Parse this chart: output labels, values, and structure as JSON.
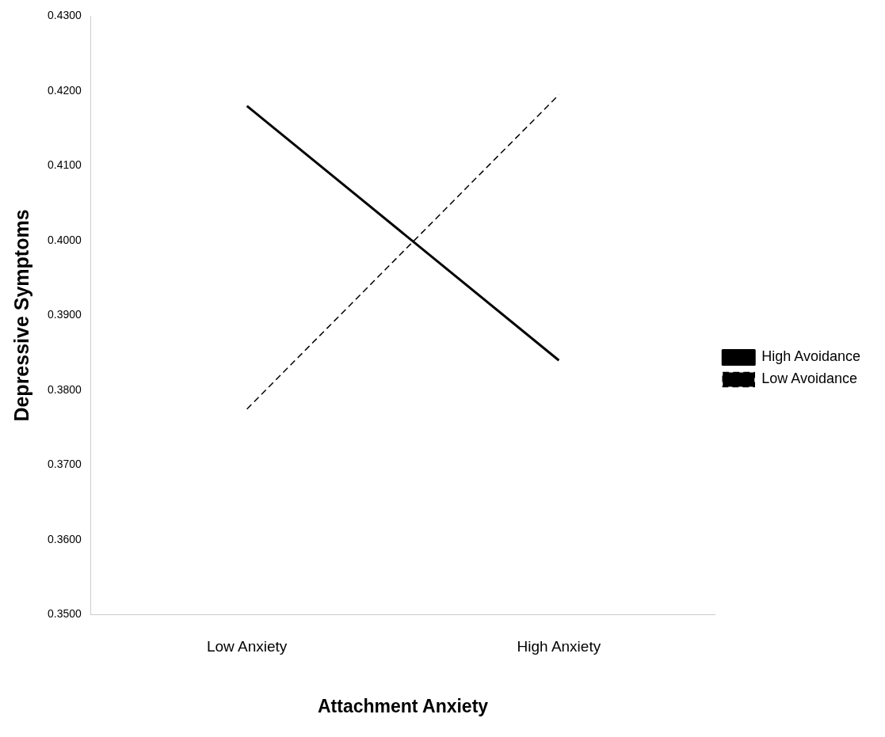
{
  "chart_data": {
    "type": "line",
    "xlabel": "Attachment Anxiety",
    "ylabel": "Depressive Symptoms",
    "categories": [
      "Low Anxiety",
      "High Anxiety"
    ],
    "series": [
      {
        "name": "High Avoidance",
        "color": "#000000",
        "line_style": "solid",
        "values": [
          0.418,
          0.384
        ]
      },
      {
        "name": "Low Avoidance",
        "color": "#000000",
        "line_style": "dashed",
        "values": [
          0.3775,
          0.4195
        ]
      }
    ],
    "ylim": [
      0.35,
      0.43
    ],
    "yticks": [
      {
        "value": 0.35,
        "label": "0.3500"
      },
      {
        "value": 0.36,
        "label": "0.3600"
      },
      {
        "value": 0.37,
        "label": "0.3700"
      },
      {
        "value": 0.38,
        "label": "0.3800"
      },
      {
        "value": 0.39,
        "label": "0.3900"
      },
      {
        "value": 0.4,
        "label": "0.4000"
      },
      {
        "value": 0.41,
        "label": "0.4100"
      },
      {
        "value": 0.42,
        "label": "0.4200"
      },
      {
        "value": 0.43,
        "label": "0.4300"
      }
    ],
    "legend": "right",
    "marker": "none",
    "grid": false
  }
}
